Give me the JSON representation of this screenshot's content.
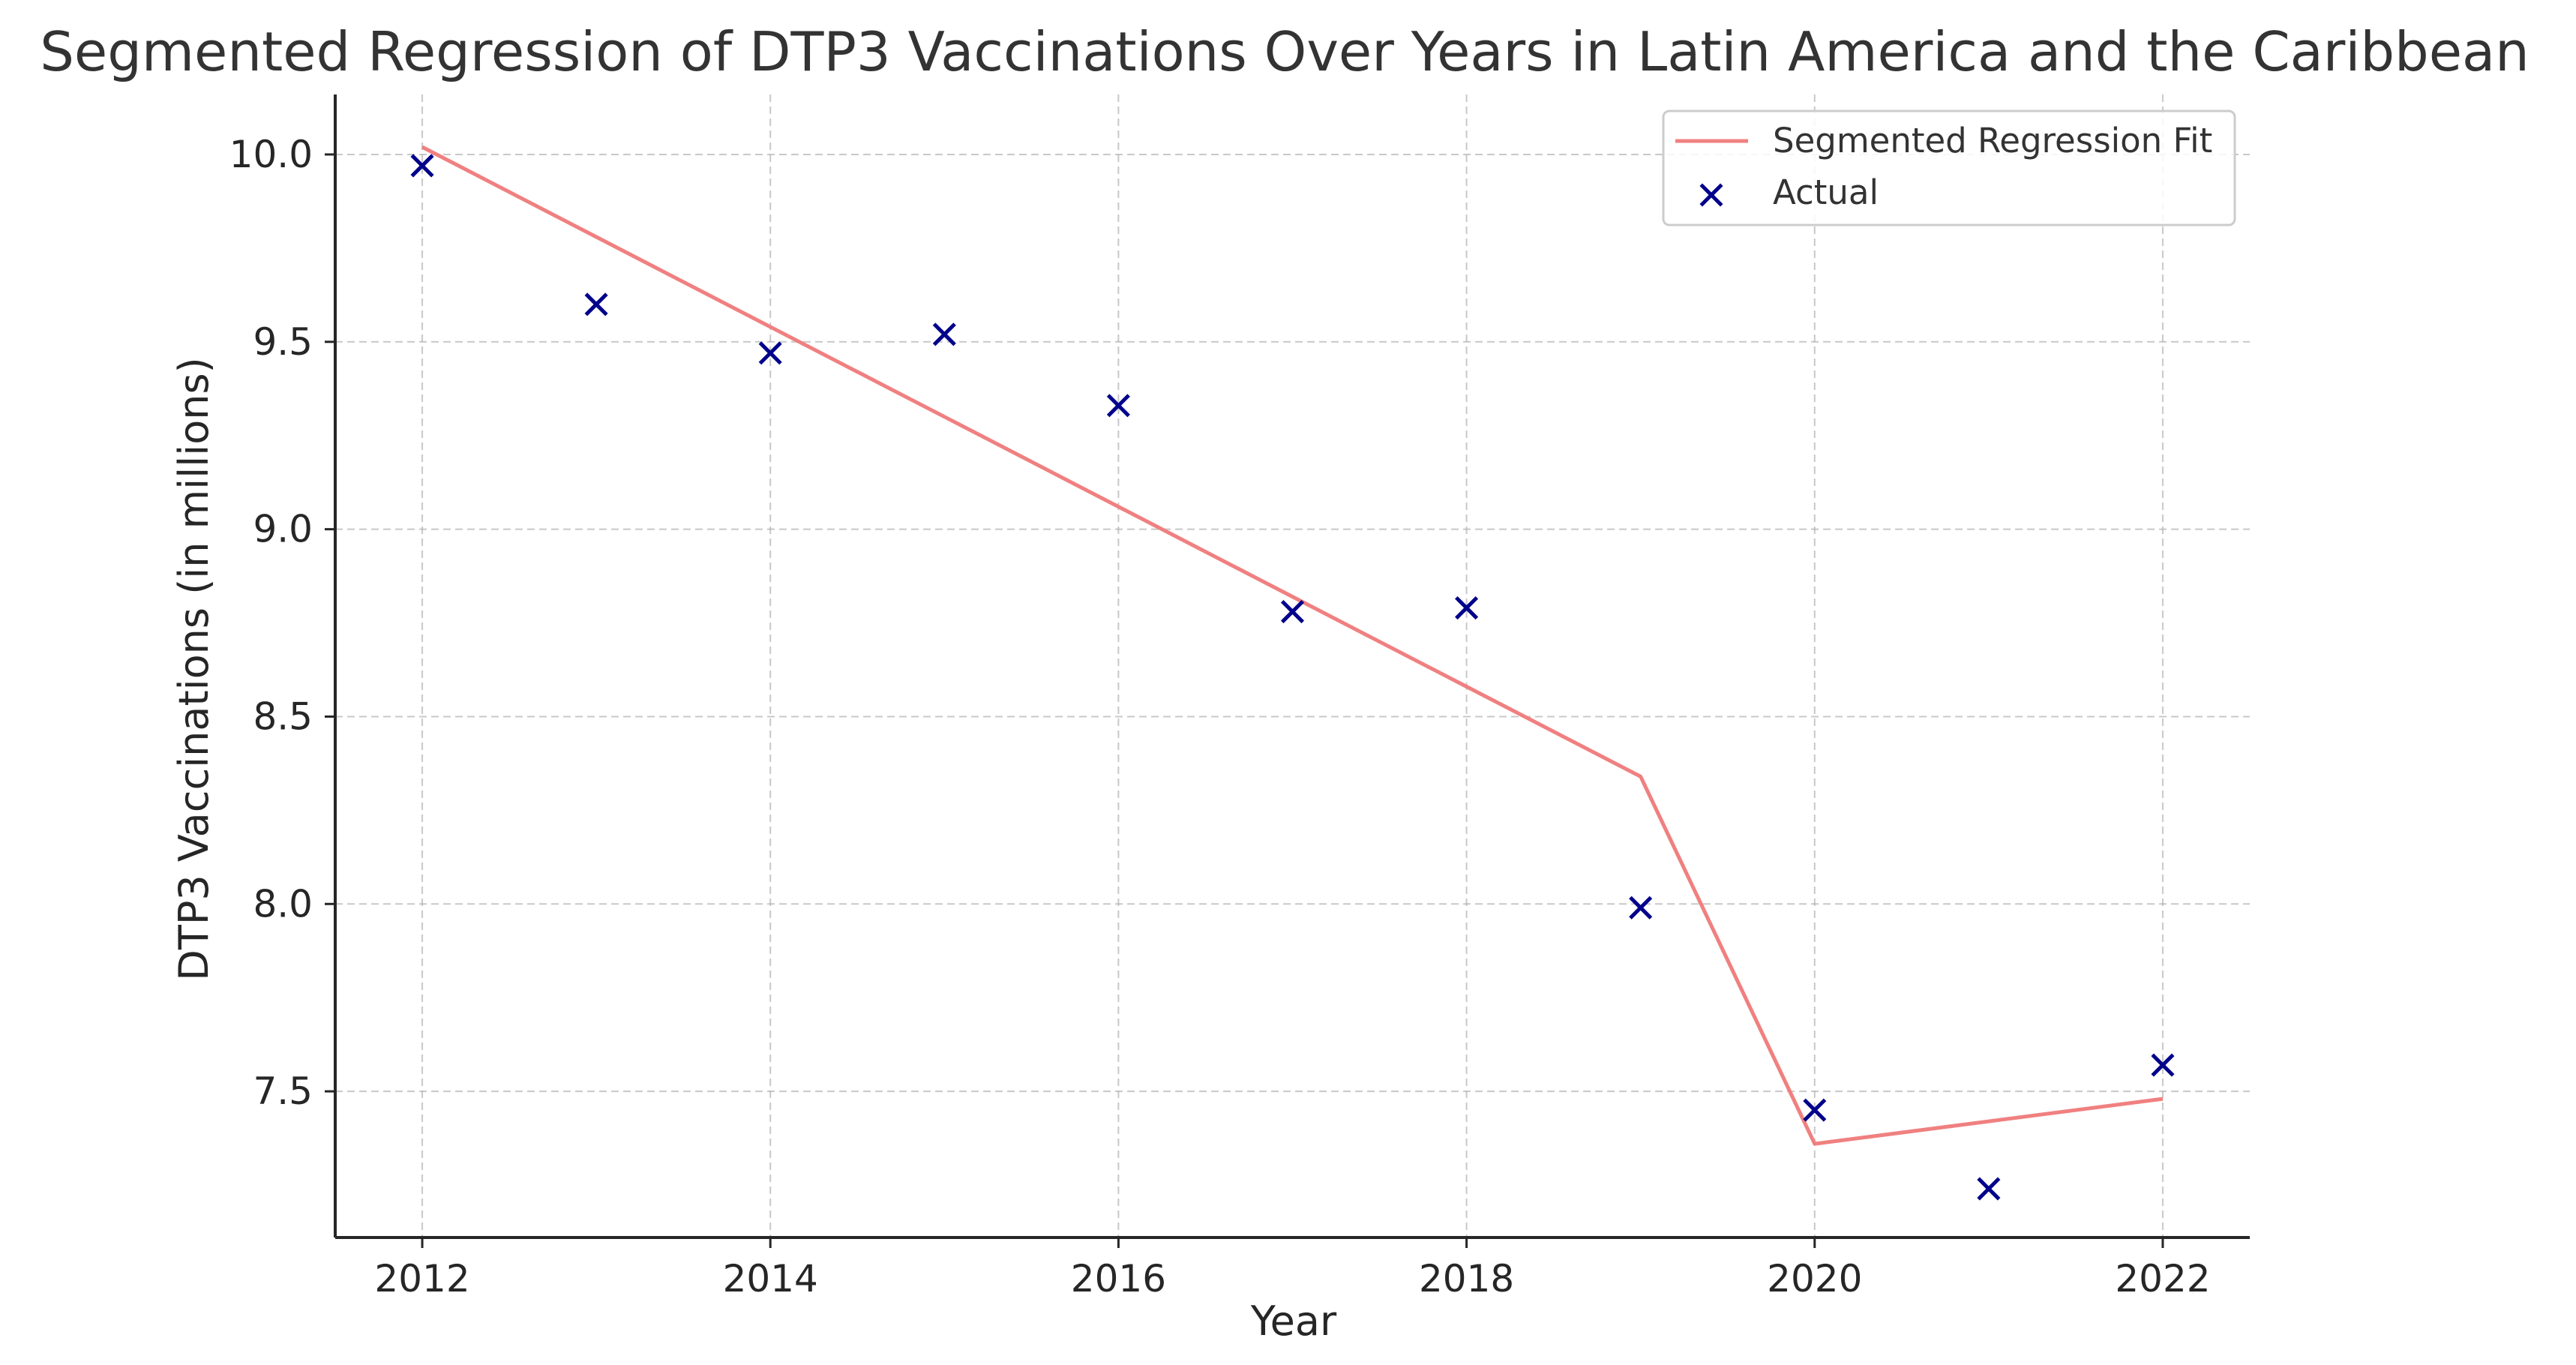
{
  "chart_data": {
    "type": "line",
    "title": "Segmented Regression of DTP3 Vaccinations Over Years in Latin America and the Caribbean",
    "xlabel": "Year",
    "ylabel": "DTP3 Vaccinations (in millions)",
    "xlim": [
      2011.5,
      2022.5
    ],
    "ylim": [
      7.11,
      10.16
    ],
    "grid": true,
    "legend_position": "top-right",
    "x_ticks": [
      2012,
      2014,
      2016,
      2018,
      2020,
      2022
    ],
    "x_tick_labels": [
      "2012",
      "2014",
      "2016",
      "2018",
      "2020",
      "2022"
    ],
    "y_ticks": [
      7.5,
      8.0,
      8.5,
      9.0,
      9.5,
      10.0
    ],
    "y_tick_labels": [
      "7.5",
      "8.0",
      "8.5",
      "9.0",
      "9.5",
      "10.0"
    ],
    "series": [
      {
        "name": "Segmented Regression Fit",
        "kind": "line",
        "color": "#f08080",
        "x": [
          2012,
          2013,
          2014,
          2015,
          2016,
          2017,
          2018,
          2019,
          2020,
          2021,
          2022
        ],
        "y": [
          10.02,
          9.78,
          9.54,
          9.3,
          9.06,
          8.82,
          8.58,
          8.34,
          7.36,
          7.42,
          7.48
        ]
      },
      {
        "name": "Actual",
        "kind": "scatter",
        "marker": "x",
        "color": "#00008b",
        "x": [
          2012,
          2013,
          2014,
          2015,
          2016,
          2017,
          2018,
          2019,
          2020,
          2021,
          2022
        ],
        "y": [
          9.97,
          9.6,
          9.47,
          9.52,
          9.33,
          8.78,
          8.79,
          7.99,
          7.45,
          7.24,
          7.57
        ]
      }
    ]
  }
}
